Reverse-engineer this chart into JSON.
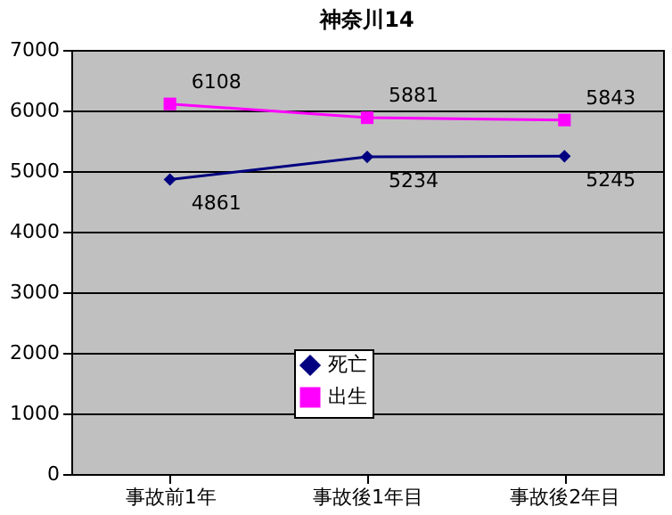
{
  "chart_data": {
    "type": "line",
    "title": "神奈川14",
    "categories": [
      "事故前1年",
      "事故後1年目",
      "事故後2年目"
    ],
    "series": [
      {
        "name": "死亡",
        "color": "#000080",
        "values": [
          4861,
          5234,
          5245
        ],
        "marker": "diamond"
      },
      {
        "name": "出生",
        "color": "#ff00ff",
        "values": [
          6108,
          5881,
          5843
        ],
        "marker": "square"
      }
    ],
    "ylim": [
      0,
      7000
    ],
    "yticks": [
      0,
      1000,
      2000,
      3000,
      4000,
      5000,
      6000,
      7000
    ],
    "grid": "y",
    "legend": "bottom",
    "data_labels": true,
    "line_style": "solid"
  }
}
